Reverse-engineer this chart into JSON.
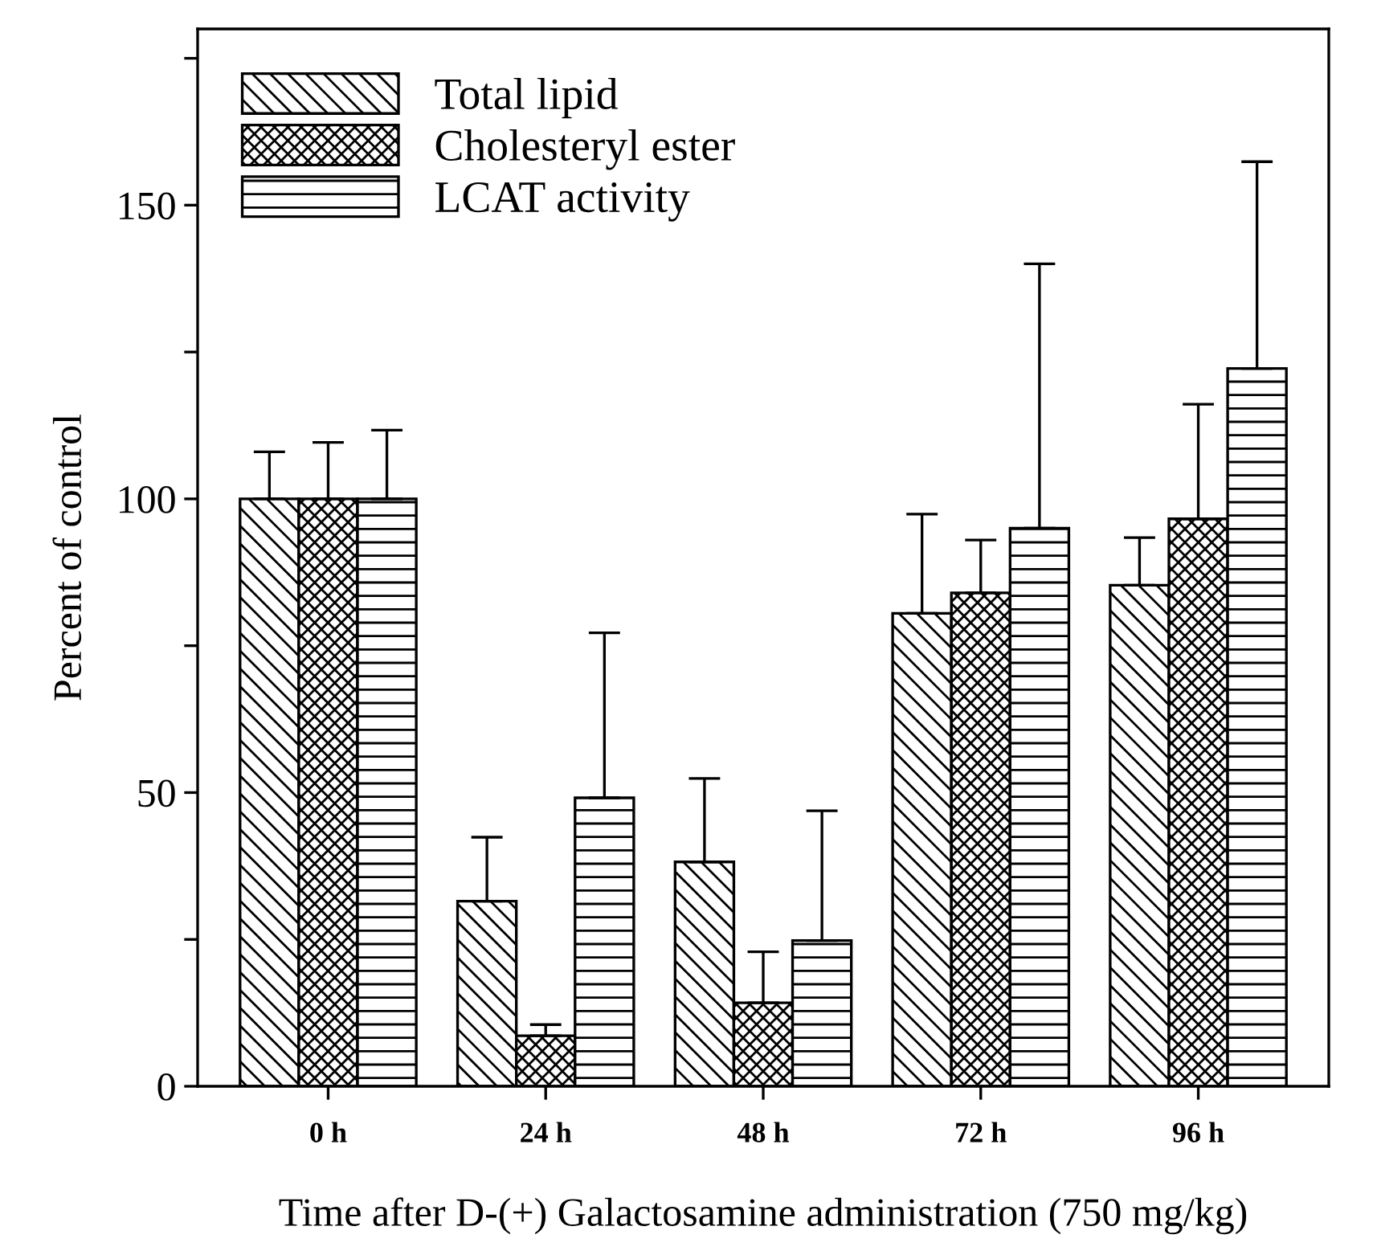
{
  "chart_data": {
    "type": "bar",
    "xlabel": "Time after D-(+) Galactosamine administration (750 mg/kg)",
    "ylabel": "Percent of control",
    "categories": [
      "0 h",
      "24 h",
      "48 h",
      "72 h",
      "96 h"
    ],
    "series": [
      {
        "name": "Total lipid",
        "color": "#000000",
        "values": [
          100,
          31.5,
          38.2,
          80.5,
          85.3
        ],
        "errors": [
          [
            100,
            108
          ],
          [
            31.5,
            42.4
          ],
          [
            38.2,
            52.4
          ],
          [
            80.5,
            97.4
          ],
          [
            85.3,
            93.4
          ]
        ]
      },
      {
        "name": "Cholesteryl ester",
        "color": "#000000",
        "values": [
          100,
          8.6,
          14.2,
          84,
          96.6
        ],
        "errors": [
          [
            100,
            109.6
          ],
          [
            8.6,
            10.5
          ],
          [
            14.2,
            22.9
          ],
          [
            84,
            93
          ],
          [
            96.6,
            116.1
          ]
        ]
      },
      {
        "name": "LCAT activity",
        "color": "#000000",
        "values": [
          100,
          49.1,
          24.8,
          95,
          122.2
        ],
        "errors": [
          [
            100,
            111.7
          ],
          [
            49.1,
            77.2
          ],
          [
            24.8,
            46.9
          ],
          [
            95,
            140
          ],
          [
            122.2,
            157.4
          ]
        ]
      }
    ],
    "ylim": [
      0,
      180
    ],
    "yticks": [
      0,
      {
        "value": 25,
        "label": null
      },
      50,
      {
        "value": 75,
        "label": null
      },
      100,
      {
        "value": 125,
        "label": null
      },
      150,
      {
        "value": 175,
        "label": null
      }
    ],
    "grid": false,
    "legend": "top left"
  }
}
